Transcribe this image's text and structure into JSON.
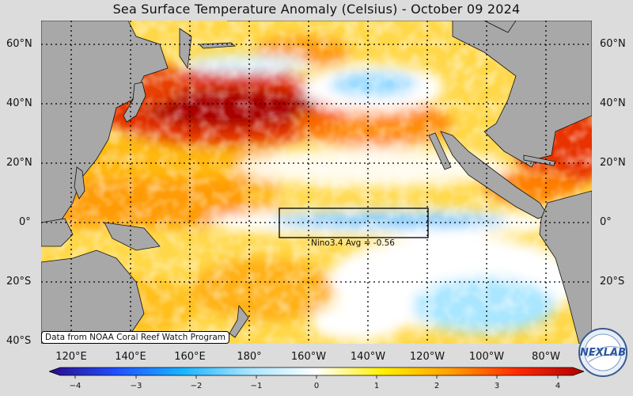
{
  "title": "Sea Surface Temperature Anomaly (Celsius) - October 09 2024",
  "latitude_labels": [
    "60°N",
    "40°N",
    "20°N",
    "0°",
    "20°S",
    "40°S"
  ],
  "longitude_labels": [
    "120°E",
    "140°E",
    "160°E",
    "180°",
    "160°W",
    "140°W",
    "120°W",
    "100°W",
    "80°W"
  ],
  "nino_box": {
    "label": "Nino3.4 Avg = -0.56",
    "value": -0.56
  },
  "credit": "Data from NOAA Coral Reef Watch Program",
  "colorbar": {
    "ticks": [
      "−4",
      "−3",
      "−2",
      "−1",
      "0",
      "1",
      "2",
      "3",
      "4"
    ],
    "range": [
      -4,
      4
    ],
    "colors": [
      "#2a0a8a",
      "#2050ff",
      "#19b4ff",
      "#a9e6ff",
      "#ffffff",
      "#fff000",
      "#ffa000",
      "#ff2a00",
      "#b00000"
    ]
  },
  "logo": {
    "text": "NEXLAB"
  },
  "land_color": "#a8a8a8"
}
